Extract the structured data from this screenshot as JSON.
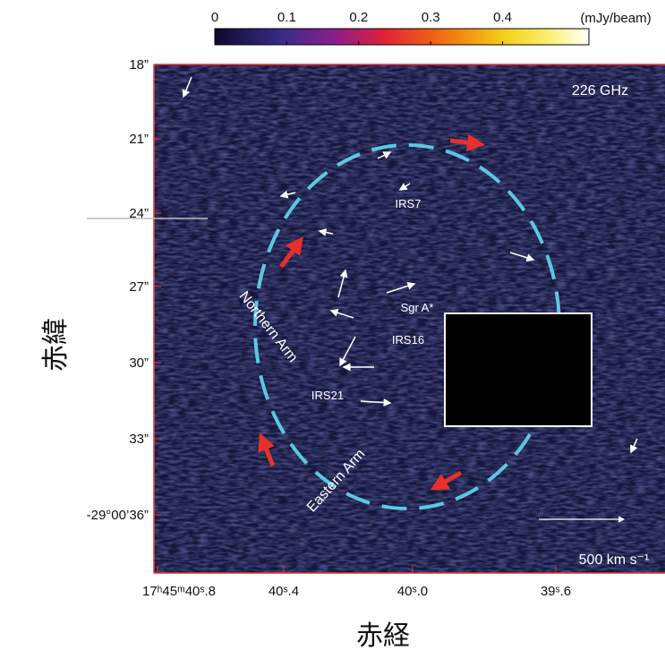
{
  "colorbar": {
    "ticks": [
      0,
      0.1,
      0.2,
      0.3,
      0.4
    ],
    "range": [
      0,
      0.52
    ],
    "unit": "(mJy/beam)"
  },
  "frequency": "226 GHz",
  "y_axis": {
    "label": "赤緯",
    "ticks": [
      "18”",
      "21”",
      "24”",
      "27”",
      "30”",
      "33”",
      "-29°00’36”"
    ]
  },
  "x_axis": {
    "label": "赤経",
    "ticks": [
      "17ʰ45ᵐ40ˢ.8",
      "40ˢ.4",
      "40ˢ.0",
      "39ˢ.6"
    ]
  },
  "annotations": {
    "irs7": "IRS7",
    "sgr_a": "Sgr A*",
    "irs16": "IRS16",
    "irs21": "IRS21",
    "northern_arm": "Northern Arm",
    "eastern_arm": "Eastern Arm"
  },
  "scale_bar": "500 km s⁻¹"
}
